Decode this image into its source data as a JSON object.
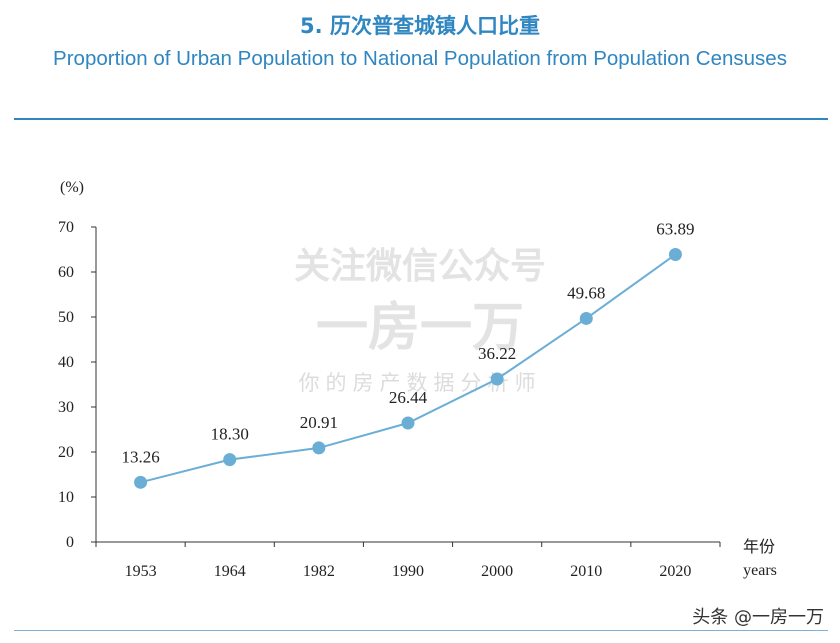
{
  "title_cn": "5. 历次普查城镇人口比重",
  "title_en": "Proportion of Urban Population to National Population from Population Censuses",
  "watermark": {
    "line1": "关注微信公众号",
    "line2": "一房一万",
    "line3": "你的房产数据分析师"
  },
  "credit": "头条 @一房一万",
  "colors": {
    "accent": "#2f86c1",
    "series": "#6baed6",
    "point": "#6aaed6"
  },
  "chart_data": {
    "type": "line",
    "title": "Proportion of Urban Population to National Population from Population Censuses",
    "ylabel": "(%)",
    "xlabel_cn": "年份",
    "xlabel_en": "years",
    "categories": [
      "1953",
      "1964",
      "1982",
      "1990",
      "2000",
      "2010",
      "2020"
    ],
    "values": [
      13.26,
      18.3,
      20.91,
      26.44,
      36.22,
      49.68,
      63.89
    ],
    "value_labels": [
      "13.26",
      "18.30",
      "20.91",
      "26.44",
      "36.22",
      "49.68",
      "63.89"
    ],
    "yticks": [
      "0",
      "10",
      "20",
      "30",
      "40",
      "50",
      "60",
      "70"
    ],
    "ylim": [
      0,
      70
    ],
    "grid": false,
    "legend": "none"
  }
}
